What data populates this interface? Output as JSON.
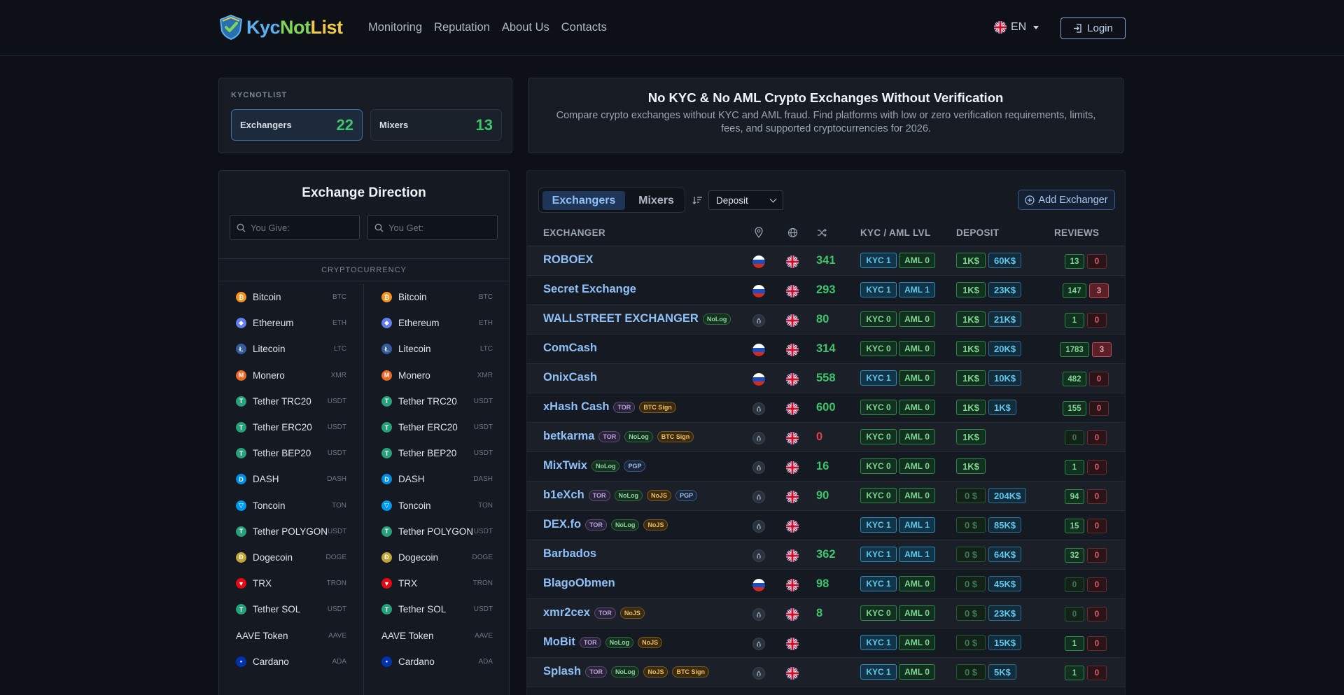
{
  "header": {
    "logo": {
      "kyc": "Kyc",
      "not": "Not",
      "list": "List"
    },
    "nav": [
      "Monitoring",
      "Reputation",
      "About Us",
      "Contacts"
    ],
    "language": "EN",
    "login": "Login"
  },
  "stats": {
    "title": "KYCNOTLIST",
    "exchangers_label": "Exchangers",
    "exchangers_count": "22",
    "mixers_label": "Mixers",
    "mixers_count": "13"
  },
  "intro": {
    "title": "No KYC & No AML Crypto Exchanges Without Verification",
    "text": "Compare crypto exchanges without KYC and AML fraud. Find platforms with low or zero verification requirements, limits, fees, and supported cryptocurrencies for 2026."
  },
  "direction": {
    "title": "Exchange Direction",
    "give_placeholder": "You Give:",
    "get_placeholder": "You Get:",
    "section": "CRYPTOCURRENCY",
    "coins": [
      {
        "name": "Bitcoin",
        "code": "BTC",
        "color": "#f7931a",
        "glyph": "₿"
      },
      {
        "name": "Ethereum",
        "code": "ETH",
        "color": "#627eea",
        "glyph": "◆"
      },
      {
        "name": "Litecoin",
        "code": "LTC",
        "color": "#345d9d",
        "glyph": "Ł"
      },
      {
        "name": "Monero",
        "code": "XMR",
        "color": "#f26822",
        "glyph": "M"
      },
      {
        "name": "Tether TRC20",
        "code": "USDT",
        "color": "#26a17b",
        "glyph": "T"
      },
      {
        "name": "Tether ERC20",
        "code": "USDT",
        "color": "#26a17b",
        "glyph": "T"
      },
      {
        "name": "Tether BEP20",
        "code": "USDT",
        "color": "#26a17b",
        "glyph": "T"
      },
      {
        "name": "DASH",
        "code": "DASH",
        "color": "#008de4",
        "glyph": "D"
      },
      {
        "name": "Toncoin",
        "code": "TON",
        "color": "#0098ea",
        "glyph": "▽"
      },
      {
        "name": "Tether POLYGON",
        "code": "USDT",
        "color": "#26a17b",
        "glyph": "T"
      },
      {
        "name": "Dogecoin",
        "code": "DOGE",
        "color": "#c2a633",
        "glyph": "Ð"
      },
      {
        "name": "TRX",
        "code": "TRON",
        "color": "#e50914",
        "glyph": "▼"
      },
      {
        "name": "Tether SOL",
        "code": "USDT",
        "color": "#26a17b",
        "glyph": "T"
      },
      {
        "name": "AAVE Token",
        "code": "AAVE",
        "color": "",
        "glyph": ""
      },
      {
        "name": "Cardano",
        "code": "ADA",
        "color": "#0033ad",
        "glyph": "•"
      }
    ]
  },
  "table": {
    "tabs": [
      "Exchangers",
      "Mixers"
    ],
    "sort_value": "Deposit",
    "add_button": "Add Exchanger",
    "headers": {
      "exchanger": "EXCHANGER",
      "kyc": "KYC / AML LVL",
      "deposit": "DEPOSIT",
      "reviews": "REVIEWS"
    },
    "rows": [
      {
        "name": "ROBOEX",
        "tags": [],
        "loc": "ru",
        "score": "341",
        "kyc": "KYC 1",
        "aml": "AML 0",
        "dep": "1K$",
        "dep_active": true,
        "limit": "60K$",
        "pos": "13",
        "neg": "0",
        "neg_hot": false
      },
      {
        "name": "Secret Exchange",
        "tags": [],
        "loc": "ru",
        "score": "293",
        "kyc": "KYC 1",
        "aml": "AML 1",
        "dep": "1K$",
        "dep_active": true,
        "limit": "23K$",
        "pos": "147",
        "neg": "3",
        "neg_hot": true
      },
      {
        "name": "WALLSTREET EXCHANGER",
        "tags": [
          "NoLog"
        ],
        "loc": "onion",
        "score": "80",
        "kyc": "KYC 0",
        "aml": "AML 0",
        "dep": "1K$",
        "dep_active": true,
        "limit": "21K$",
        "pos": "1",
        "neg": "0",
        "neg_hot": false
      },
      {
        "name": "ComCash",
        "tags": [],
        "loc": "ru",
        "score": "314",
        "kyc": "KYC 0",
        "aml": "AML 0",
        "dep": "1K$",
        "dep_active": true,
        "limit": "20K$",
        "pos": "1783",
        "neg": "3",
        "neg_hot": true
      },
      {
        "name": "OnixCash",
        "tags": [],
        "loc": "ru",
        "score": "558",
        "kyc": "KYC 1",
        "aml": "AML 0",
        "dep": "1K$",
        "dep_active": true,
        "limit": "10K$",
        "pos": "482",
        "neg": "0",
        "neg_hot": false
      },
      {
        "name": "xHash Cash",
        "tags": [
          "TOR",
          "BTC Sign"
        ],
        "loc": "onion",
        "score": "600",
        "kyc": "KYC 0",
        "aml": "AML 0",
        "dep": "1K$",
        "dep_active": true,
        "limit": "1K$",
        "pos": "155",
        "neg": "0",
        "neg_hot": false
      },
      {
        "name": "betkarma",
        "tags": [
          "TOR",
          "NoLog",
          "BTC Sign"
        ],
        "loc": "onion",
        "score": "0",
        "kyc": "KYC 0",
        "aml": "AML 0",
        "dep": "1K$",
        "dep_active": true,
        "limit": "",
        "pos": "0",
        "neg": "0",
        "neg_hot": false
      },
      {
        "name": "MixTwix",
        "tags": [
          "NoLog",
          "PGP"
        ],
        "loc": "onion",
        "score": "16",
        "kyc": "KYC 0",
        "aml": "AML 0",
        "dep": "1K$",
        "dep_active": true,
        "limit": "",
        "pos": "1",
        "neg": "0",
        "neg_hot": false
      },
      {
        "name": "b1eXch",
        "tags": [
          "TOR",
          "NoLog",
          "NoJS",
          "PGP"
        ],
        "loc": "onion",
        "score": "90",
        "kyc": "KYC 0",
        "aml": "AML 0",
        "dep": "0 $",
        "dep_active": false,
        "limit": "204K$",
        "pos": "94",
        "neg": "0",
        "neg_hot": false
      },
      {
        "name": "DEX.fo",
        "tags": [
          "TOR",
          "NoLog",
          "NoJS"
        ],
        "loc": "onion",
        "score": "",
        "kyc": "KYC 1",
        "aml": "AML 1",
        "dep": "0 $",
        "dep_active": false,
        "limit": "85K$",
        "pos": "15",
        "neg": "0",
        "neg_hot": false
      },
      {
        "name": "Barbados",
        "tags": [],
        "loc": "onion",
        "score": "362",
        "kyc": "KYC 1",
        "aml": "AML 1",
        "dep": "0 $",
        "dep_active": false,
        "limit": "64K$",
        "pos": "32",
        "neg": "0",
        "neg_hot": false
      },
      {
        "name": "BlagoObmen",
        "tags": [],
        "loc": "ru",
        "score": "98",
        "kyc": "KYC 1",
        "aml": "AML 0",
        "dep": "0 $",
        "dep_active": false,
        "limit": "45K$",
        "pos": "0",
        "neg": "0",
        "neg_hot": false
      },
      {
        "name": "xmr2cex",
        "tags": [
          "TOR",
          "NoJS"
        ],
        "loc": "onion",
        "score": "8",
        "kyc": "KYC 0",
        "aml": "AML 0",
        "dep": "0 $",
        "dep_active": false,
        "limit": "23K$",
        "pos": "0",
        "neg": "0",
        "neg_hot": false
      },
      {
        "name": "MoBit",
        "tags": [
          "TOR",
          "NoLog",
          "NoJS"
        ],
        "loc": "onion",
        "score": "",
        "kyc": "KYC 1",
        "aml": "AML 0",
        "dep": "0 $",
        "dep_active": false,
        "limit": "15K$",
        "pos": "1",
        "neg": "0",
        "neg_hot": false
      },
      {
        "name": "Splash",
        "tags": [
          "TOR",
          "NoLog",
          "NoJS",
          "BTC Sign"
        ],
        "loc": "onion",
        "score": "",
        "kyc": "KYC 1",
        "aml": "AML 0",
        "dep": "0 $",
        "dep_active": false,
        "limit": "5K$",
        "pos": "1",
        "neg": "0",
        "neg_hot": false
      }
    ]
  }
}
